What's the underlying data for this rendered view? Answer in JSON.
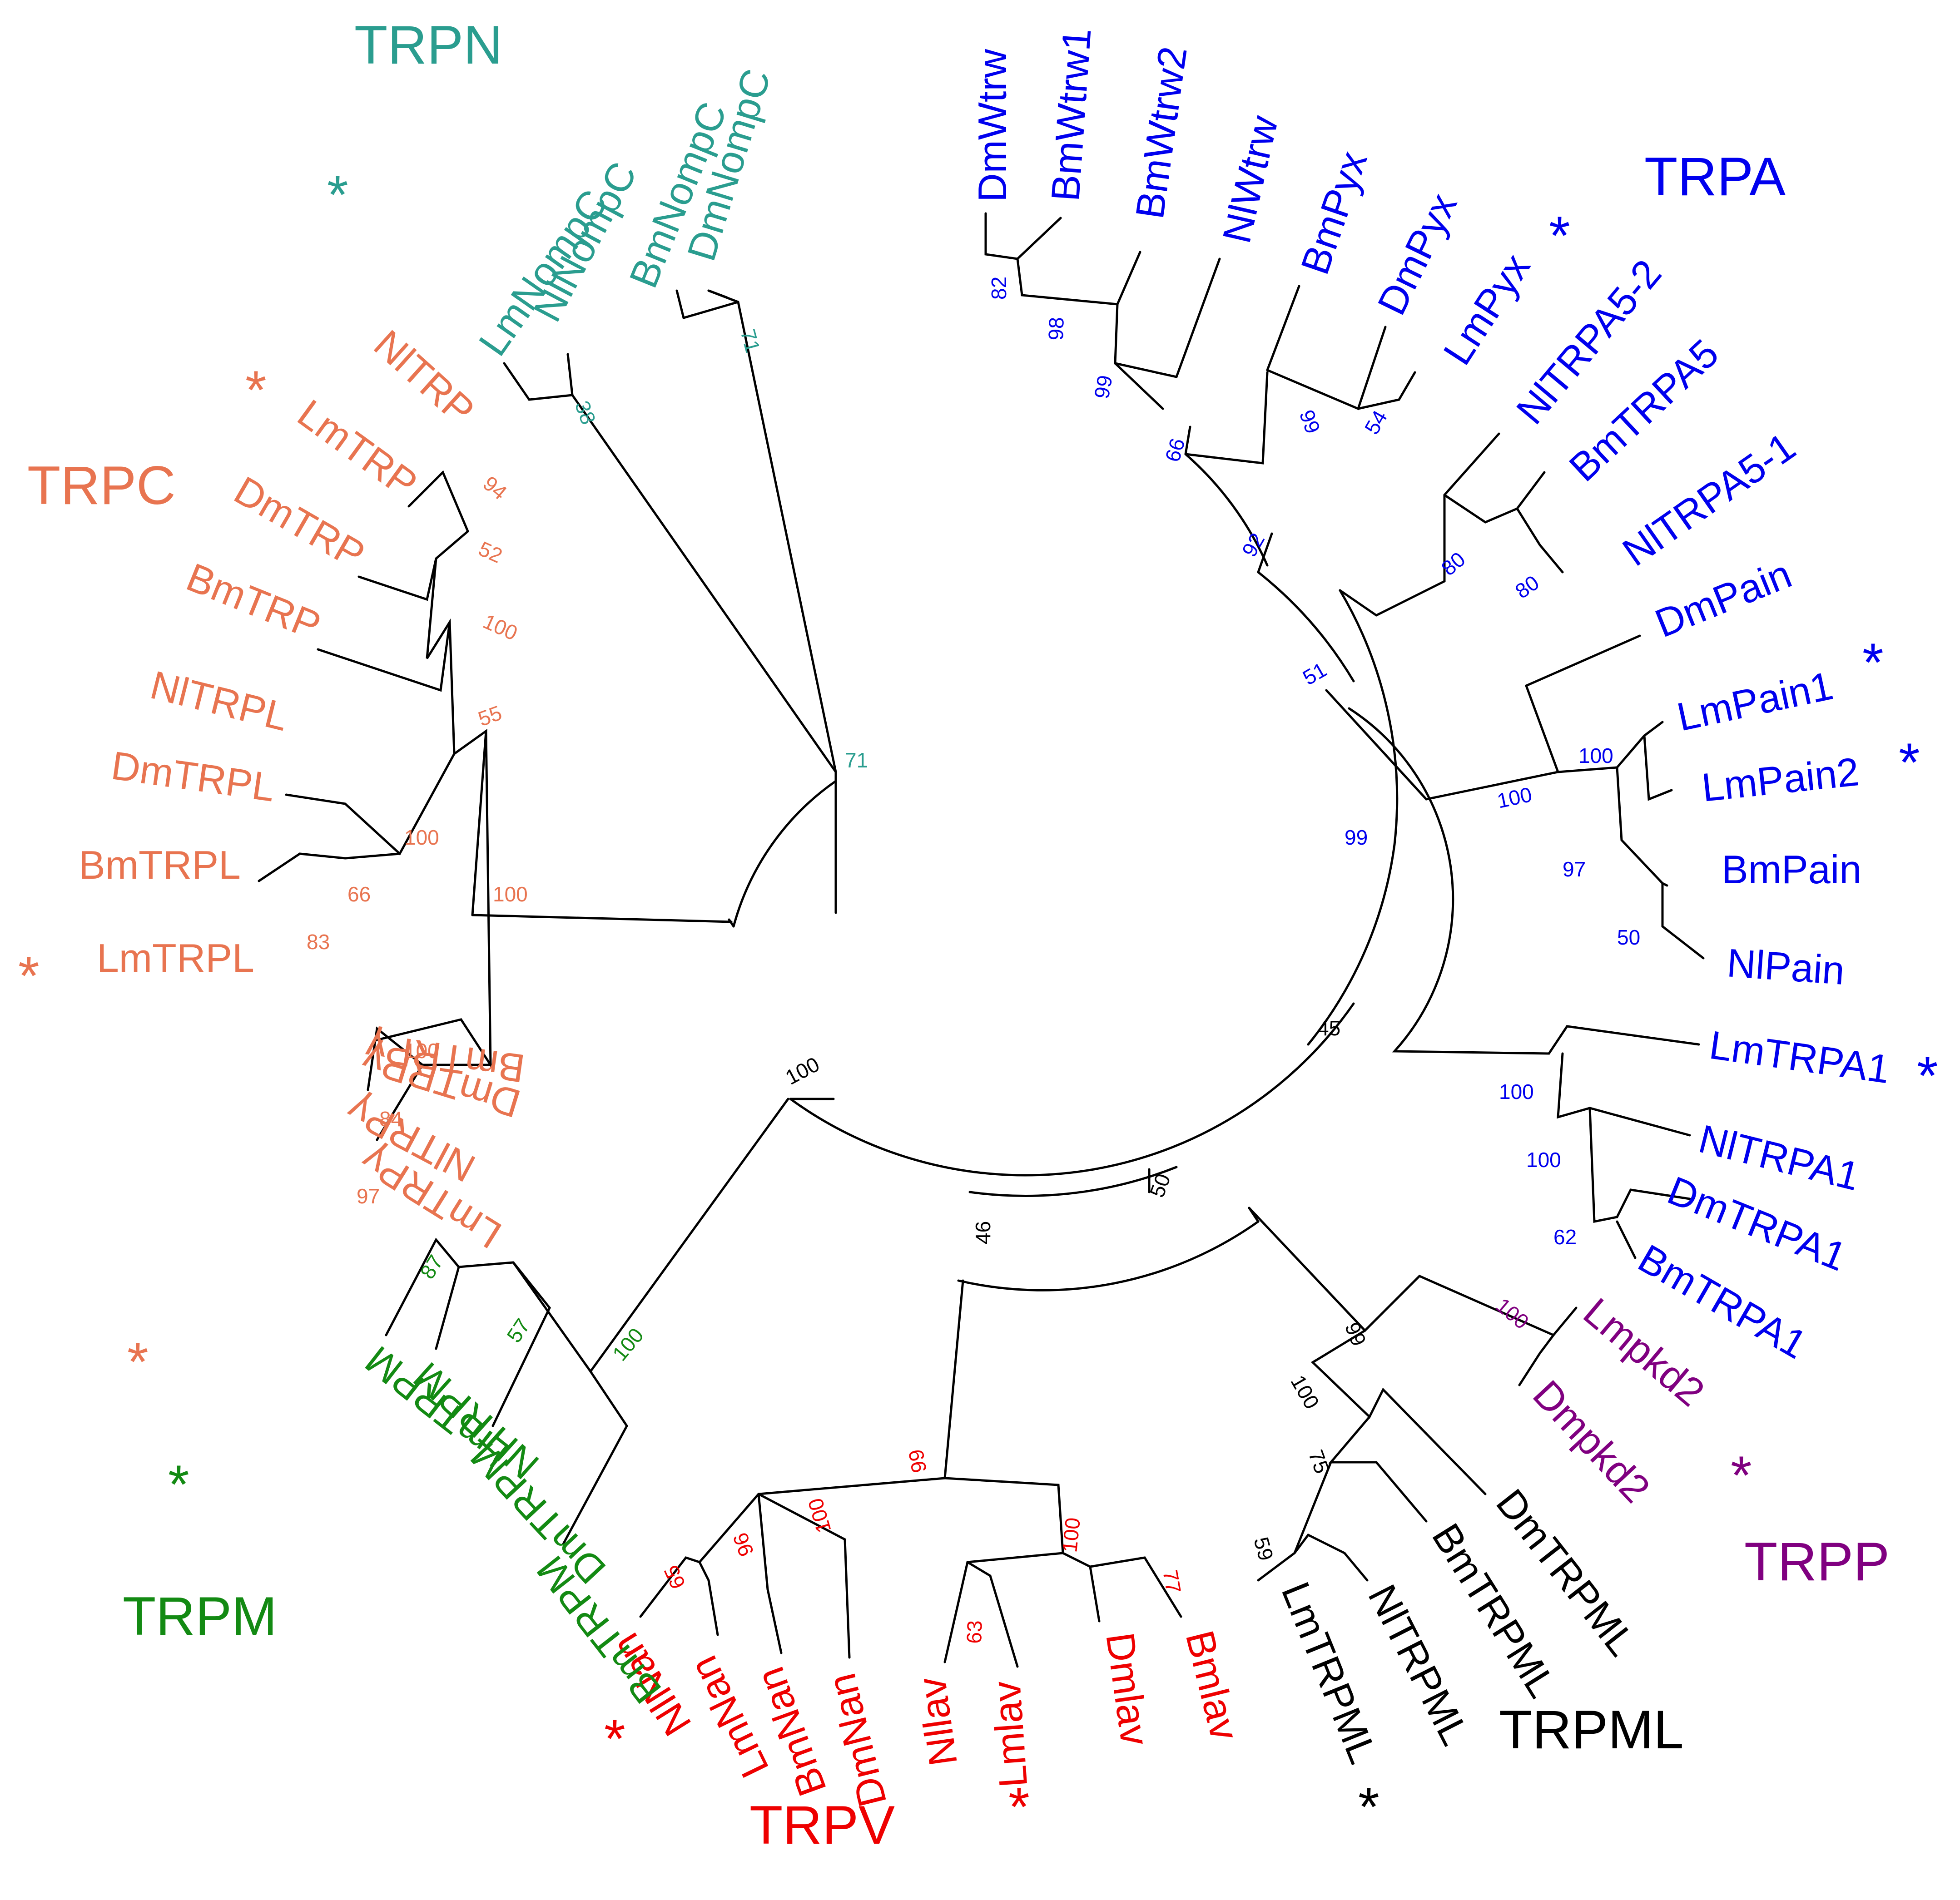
{
  "colors": {
    "trpn": "#2a9d8f",
    "trpc": "#e87450",
    "trpa": "#0000ee",
    "trpm": "#138a13",
    "trpv": "#ee0000",
    "trpml": "#000000",
    "trpp": "#800080",
    "branch": "#000000"
  },
  "families": {
    "trpn": "TRPN",
    "trpa": "TRPA",
    "trpc": "TRPC",
    "trpm": "TRPM",
    "trpv": "TRPV",
    "trpml": "TRPML",
    "trpp": "TRPP"
  },
  "leaves": {
    "LmNompC": "LmNompC",
    "NlNompC": "NlNompC",
    "BmNompC": "BmNompC",
    "DmNompC": "DmNompC",
    "DmWtrw": "DmWtrw",
    "BmWtrw1": "BmWtrw1",
    "BmWtrw2": "BmWtrw2",
    "NlWtrw": "NlWtrw",
    "BmPyx": "BmPyx",
    "DmPyx": "DmPyx",
    "LmPyx": "LmPyx",
    "NlTRPA5_2": "NlTRPA5-2",
    "BmTRPA5": "BmTRPA5",
    "NlTRPA5_1": "NlTRPA5-1",
    "DmPain": "DmPain",
    "LmPain1": "LmPain1",
    "LmPain2": "LmPain2",
    "BmPain": "BmPain",
    "NlPain": "NlPain",
    "LmTRPA1": "LmTRPA1",
    "NlTRPA1": "NlTRPA1",
    "DmTRPA1": "DmTRPA1",
    "BmTRPA1": "BmTRPA1",
    "Lmpkd2": "Lmpkd2",
    "Dmpkd2": "Dmpkd2",
    "DmTRPML": "DmTRPML",
    "BmTRPML": "BmTRPML",
    "NlTRPML": "NlTRPML",
    "LmTRPML": "LmTRPML",
    "Bmlav": "Bmlav",
    "Dmlav": "Dmlav",
    "Lmlav": "Lmlav",
    "Nllav": "Nllav",
    "DmNan": "DmNan",
    "BmNan": "BmNan",
    "LmNan": "LmNan",
    "NlNan": "NlNan",
    "BmTRPM": "BmTRPM",
    "DmTRPM": "DmTRPM",
    "NlTRPM": "NlTRPM",
    "LmTRPM": "LmTRPM",
    "LmTRPy": "LmTRPγ",
    "NlTRPy": "NlTRPγ",
    "DmTRPy": "DmTRPγ",
    "BmTRPy": "BmTRPγ",
    "LmTRPL": "LmTRPL",
    "BmTRPL": "BmTRPL",
    "DmTRPL": "DmTRPL",
    "NlTRPL": "NlTRPL",
    "BmTRP": "BmTRP",
    "DmTRP": "DmTRP",
    "LmTRP": "LmTRP",
    "NlTRP": "NlTRP"
  },
  "markers": {
    "star": "*"
  },
  "bootstrap": {
    "trpn_38": "38",
    "trpn_71a": "71",
    "trpn_71b": "71",
    "trpa_82": "82",
    "trpa_98": "98",
    "trpa_99a": "99",
    "trpa_66": "66",
    "trpa_99b": "99",
    "trpa_54": "54",
    "trpa_92": "92",
    "trpa_80a": "80",
    "trpa_80b": "80",
    "trpa_51": "51",
    "trpa_100a": "100",
    "trpa_100b": "100",
    "trpa_99c": "99",
    "trpa_97": "97",
    "trpa_50": "50",
    "trpa_100c": "100",
    "trpa_100d": "100",
    "trpa_62": "62",
    "bb_45": "45",
    "bb_50": "50",
    "bb_46": "46",
    "bb_100": "100",
    "trpp_100": "100",
    "trpml_99": "99",
    "trpml_100": "100",
    "trpml_75": "75",
    "trpml_59": "59",
    "trpv_99": "99",
    "trpv_100a": "100",
    "trpv_96": "96",
    "trpv_65": "65",
    "trpv_100b": "100",
    "trpv_63": "63",
    "trpv_77": "77",
    "trpm_100": "100",
    "trpm_57": "57",
    "trpm_87": "87",
    "trpc_94": "94",
    "trpc_52": "52",
    "trpc_100a": "100",
    "trpc_55": "55",
    "trpc_100b": "100",
    "trpc_66": "66",
    "trpc_83": "83",
    "trpc_100c": "100",
    "trpc_100d": "100",
    "trpc_84": "84",
    "trpc_97": "97"
  }
}
